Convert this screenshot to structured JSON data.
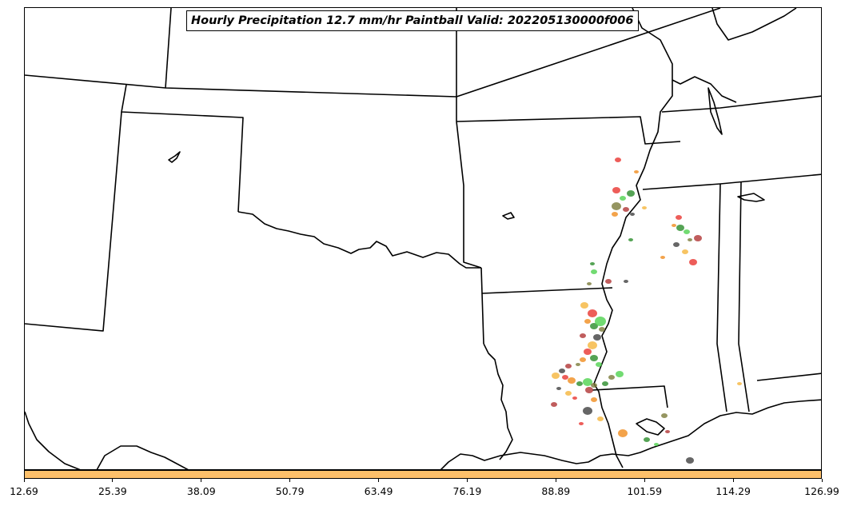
{
  "title": "Hourly Precipitation 12.7 mm/hr Paintball Valid: 202205130000f006",
  "colorbar": {
    "color": "#fdc06a",
    "ticks": [
      "12.69",
      "25.39",
      "38.09",
      "50.79",
      "63.49",
      "76.19",
      "88.89",
      "101.59",
      "114.29",
      "126.99"
    ]
  },
  "paintball_colors": [
    "#e8342f",
    "#f08c1e",
    "#2a8c2a",
    "#4fd24f",
    "#7a7a3a",
    "#b03434",
    "#404040",
    "#f5b53c"
  ],
  "chart_data": {
    "type": "map",
    "title": "Hourly Precipitation 12.7 mm/hr Paintball Valid: 202205130000f006",
    "colorbar_ticks": [
      12.69,
      25.39,
      38.09,
      50.79,
      63.49,
      76.19,
      88.89,
      101.59,
      114.29,
      126.99
    ],
    "colorbar_range": [
      12.69,
      126.99
    ]
  }
}
